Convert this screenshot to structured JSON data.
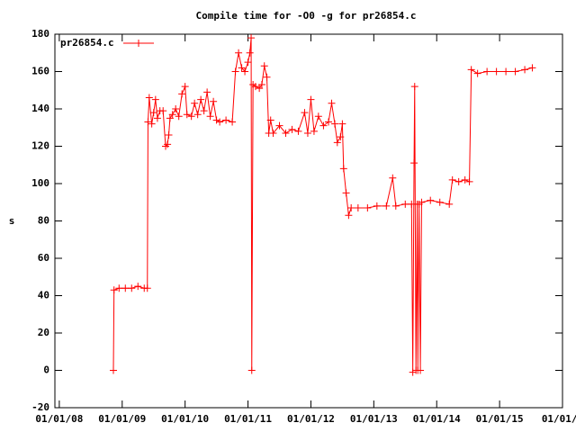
{
  "chart_data": {
    "type": "line",
    "title": "Compile time for -O0 -g for pr26854.c",
    "y_label": "s",
    "x": [
      2008.86,
      2008.87,
      2008.95,
      2009.05,
      2009.15,
      2009.25,
      2009.35,
      2009.4,
      2009.41,
      2009.43,
      2009.47,
      2009.5,
      2009.53,
      2009.56,
      2009.6,
      2009.65,
      2009.69,
      2009.72,
      2009.74,
      2009.76,
      2009.8,
      2009.85,
      2009.9,
      2009.95,
      2010.0,
      2010.03,
      2010.1,
      2010.15,
      2010.2,
      2010.25,
      2010.3,
      2010.35,
      2010.4,
      2010.45,
      2010.5,
      2010.55,
      2010.65,
      2010.75,
      2010.8,
      2010.85,
      2010.9,
      2010.95,
      2011.0,
      2011.03,
      2011.05,
      2011.06,
      2011.08,
      2011.12,
      2011.18,
      2011.22,
      2011.26,
      2011.3,
      2011.33,
      2011.36,
      2011.4,
      2011.5,
      2011.6,
      2011.7,
      2011.8,
      2011.9,
      2011.95,
      2012.0,
      2012.05,
      2012.12,
      2012.2,
      2012.28,
      2012.33,
      2012.38,
      2012.42,
      2012.47,
      2012.5,
      2012.52,
      2012.56,
      2012.6,
      2012.64,
      2012.75,
      2012.9,
      2013.05,
      2013.2,
      2013.3,
      2013.35,
      2013.5,
      2013.6,
      2013.62,
      2013.64,
      2013.65,
      2013.67,
      2013.69,
      2013.7,
      2013.72,
      2013.74,
      2013.76,
      2013.9,
      2014.05,
      2014.2,
      2014.25,
      2014.35,
      2014.45,
      2014.52,
      2014.55,
      2014.65,
      2014.8,
      2014.95,
      2015.1,
      2015.25,
      2015.4,
      2015.52
    ],
    "series": [
      {
        "name": "pr26854.c",
        "color": "#ff0000",
        "values": [
          0,
          43,
          44,
          44,
          44,
          45,
          44,
          44,
          133,
          146,
          132,
          138,
          145,
          135,
          139,
          139,
          120,
          121,
          126,
          135,
          137,
          140,
          136,
          148,
          152,
          137,
          136,
          143,
          137,
          145,
          139,
          149,
          136,
          144,
          134,
          133,
          134,
          133,
          160,
          170,
          162,
          160,
          165,
          170,
          178,
          0,
          153,
          152,
          151,
          153,
          163,
          157,
          127,
          134,
          127,
          131,
          127,
          129,
          128,
          138,
          127,
          145,
          128,
          136,
          131,
          133,
          143,
          132,
          122,
          125,
          132,
          108,
          95,
          83,
          87,
          87,
          87,
          88,
          88,
          103,
          88,
          89,
          89,
          -1,
          111,
          152,
          0,
          89,
          0,
          89,
          0,
          90,
          91,
          90,
          89,
          102,
          101,
          102,
          101,
          161,
          159,
          160,
          160,
          160,
          160,
          161,
          162
        ]
      }
    ],
    "xlim": [
      2007.93,
      2016.0
    ],
    "xticks": [
      {
        "value": 2008,
        "label": "01/01/08"
      },
      {
        "value": 2009,
        "label": "01/01/09"
      },
      {
        "value": 2010,
        "label": "01/01/10"
      },
      {
        "value": 2011,
        "label": "01/01/11"
      },
      {
        "value": 2012,
        "label": "01/01/12"
      },
      {
        "value": 2013,
        "label": "01/01/13"
      },
      {
        "value": 2014,
        "label": "01/01/14"
      },
      {
        "value": 2015,
        "label": "01/01/15"
      },
      {
        "value": 2016,
        "label": "01/01/1"
      }
    ],
    "ylim": [
      -20,
      180
    ],
    "yticks": [
      -20,
      0,
      20,
      40,
      60,
      80,
      100,
      120,
      140,
      160,
      180
    ],
    "grid": false,
    "legend": "top-left"
  }
}
